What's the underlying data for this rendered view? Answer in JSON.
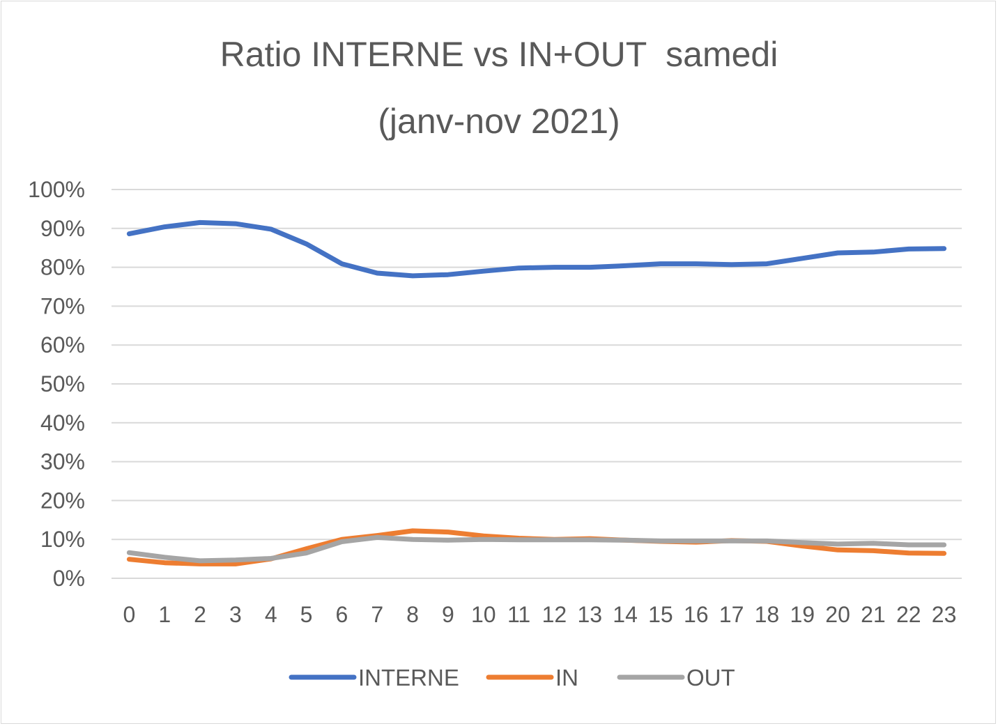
{
  "chart_data": {
    "type": "line",
    "title_line1": "Ratio INTERNE vs IN+OUT  samedi",
    "title_line2": "(janv-nov 2021)",
    "xlabel": "",
    "ylabel": "",
    "categories": [
      "0",
      "1",
      "2",
      "3",
      "4",
      "5",
      "6",
      "7",
      "8",
      "9",
      "10",
      "11",
      "12",
      "13",
      "14",
      "15",
      "16",
      "17",
      "18",
      "19",
      "20",
      "21",
      "22",
      "23"
    ],
    "ylim": [
      0,
      100
    ],
    "yticks": [
      "0%",
      "10%",
      "20%",
      "30%",
      "40%",
      "50%",
      "60%",
      "70%",
      "80%",
      "90%",
      "100%"
    ],
    "grid": true,
    "legend_position": "bottom",
    "series": [
      {
        "name": "INTERNE",
        "color": "#4472c4",
        "values": [
          88.6,
          90.4,
          91.5,
          91.2,
          89.8,
          86.0,
          80.9,
          78.5,
          77.8,
          78.1,
          79.0,
          79.8,
          80.0,
          80.0,
          80.4,
          80.9,
          80.9,
          80.7,
          80.9,
          82.3,
          83.7,
          83.9,
          84.7,
          84.8
        ]
      },
      {
        "name": "IN",
        "color": "#ed7d31",
        "values": [
          4.9,
          4.0,
          3.7,
          3.7,
          5.0,
          7.6,
          10.0,
          11.0,
          12.2,
          11.9,
          10.9,
          10.3,
          10.0,
          10.2,
          9.8,
          9.5,
          9.3,
          9.7,
          9.5,
          8.3,
          7.3,
          7.1,
          6.5,
          6.4
        ]
      },
      {
        "name": "OUT",
        "color": "#a5a5a5",
        "values": [
          6.6,
          5.4,
          4.5,
          4.7,
          5.1,
          6.5,
          9.4,
          10.5,
          10.0,
          9.8,
          10.0,
          9.9,
          9.9,
          9.9,
          9.8,
          9.6,
          9.6,
          9.6,
          9.6,
          9.2,
          8.8,
          9.0,
          8.6,
          8.6
        ]
      }
    ]
  }
}
